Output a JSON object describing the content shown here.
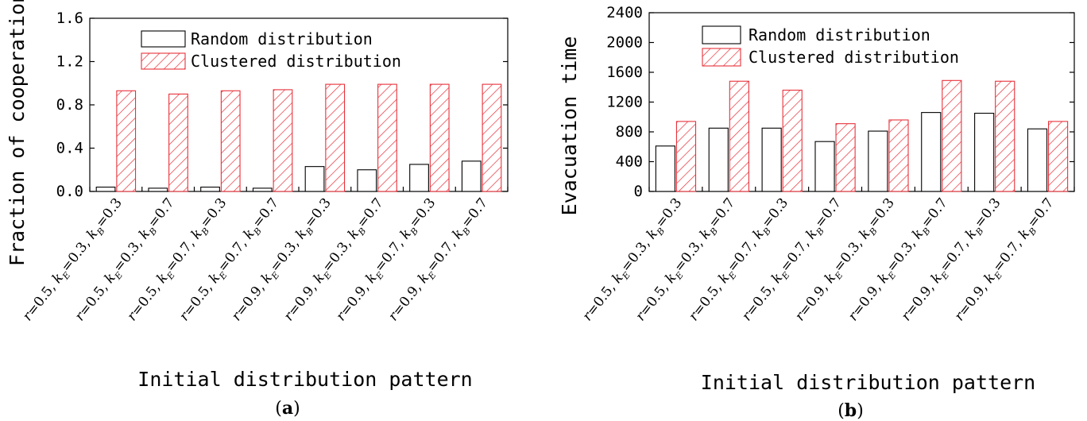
{
  "colors": {
    "random_fill": "#ffffff",
    "random_edge": "#000000",
    "clustered_edge": "#e8313a",
    "clustered_hatch": "#e8313a"
  },
  "chart_data": [
    {
      "id": "a",
      "type": "bar",
      "panel_label": "a",
      "xlabel": "Initial distribution pattern",
      "ylabel": "Fraction of cooperation",
      "ylim": [
        0,
        1.6
      ],
      "yticks": [
        "0.0",
        "0.4",
        "0.8",
        "1.2",
        "1.6"
      ],
      "grid": false,
      "legend_position": "top-left",
      "categories": [
        {
          "r": "0.5",
          "kE": "0.3",
          "kB": "0.3"
        },
        {
          "r": "0.5",
          "kE": "0.3",
          "kB": "0.7"
        },
        {
          "r": "0.5",
          "kE": "0.7",
          "kB": "0.3"
        },
        {
          "r": "0.5",
          "kE": "0.7",
          "kB": "0.7"
        },
        {
          "r": "0.9",
          "kE": "0.3",
          "kB": "0.3"
        },
        {
          "r": "0.9",
          "kE": "0.3",
          "kB": "0.7"
        },
        {
          "r": "0.9",
          "kE": "0.7",
          "kB": "0.3"
        },
        {
          "r": "0.9",
          "kE": "0.7",
          "kB": "0.7"
        }
      ],
      "series": [
        {
          "name": "Random distribution",
          "style": "plain",
          "values": [
            0.04,
            0.03,
            0.04,
            0.03,
            0.23,
            0.2,
            0.25,
            0.28
          ]
        },
        {
          "name": "Clustered distribution",
          "style": "hatched",
          "values": [
            0.93,
            0.9,
            0.93,
            0.94,
            0.99,
            0.99,
            0.99,
            0.99
          ]
        }
      ]
    },
    {
      "id": "b",
      "type": "bar",
      "panel_label": "b",
      "xlabel": "Initial distribution pattern",
      "ylabel": "Evacuation time",
      "ylim": [
        0,
        2400
      ],
      "yticks": [
        "0",
        "400",
        "800",
        "1200",
        "1600",
        "2000",
        "2400"
      ],
      "grid": false,
      "legend_position": "top-left",
      "categories": [
        {
          "r": "0.5",
          "kE": "0.3",
          "kB": "0.3"
        },
        {
          "r": "0.5",
          "kE": "0.3",
          "kB": "0.7"
        },
        {
          "r": "0.5",
          "kE": "0.7",
          "kB": "0.3"
        },
        {
          "r": "0.5",
          "kE": "0.7",
          "kB": "0.7"
        },
        {
          "r": "0.9",
          "kE": "0.3",
          "kB": "0.3"
        },
        {
          "r": "0.9",
          "kE": "0.3",
          "kB": "0.7"
        },
        {
          "r": "0.9",
          "kE": "0.7",
          "kB": "0.3"
        },
        {
          "r": "0.9",
          "kE": "0.7",
          "kB": "0.7"
        }
      ],
      "series": [
        {
          "name": "Random distribution",
          "style": "plain",
          "values": [
            610,
            850,
            850,
            670,
            810,
            1060,
            1050,
            840
          ]
        },
        {
          "name": "Clustered distribution",
          "style": "hatched",
          "values": [
            940,
            1480,
            1360,
            910,
            960,
            1490,
            1480,
            940
          ]
        }
      ]
    }
  ]
}
